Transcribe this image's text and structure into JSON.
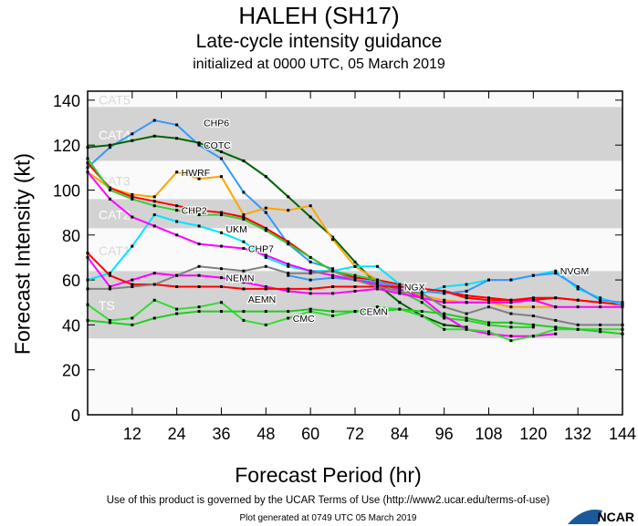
{
  "header": {
    "title": "HALEH (SH17)",
    "subtitle": "Late-cycle intensity guidance",
    "initialized": "initialized at 0000 UTC, 05 March 2019"
  },
  "footer": {
    "terms": "Use of this product is governed by the UCAR Terms of Use (http://www2.ucar.edu/terms-of-use)",
    "generated": "Plot generated at 0749 UTC   05 March 2019",
    "logo": "NCAR"
  },
  "chart_data": {
    "type": "line",
    "xlabel": "Forecast Period (hr)",
    "ylabel": "Forecast Intensity (kt)",
    "xlim": [
      0,
      144
    ],
    "ylim": [
      0,
      144
    ],
    "xticks": [
      12,
      24,
      36,
      48,
      60,
      72,
      84,
      96,
      108,
      120,
      132,
      144
    ],
    "yticks": [
      0,
      20,
      40,
      60,
      80,
      100,
      120,
      140
    ],
    "bands": [
      {
        "label": "TS",
        "from": 34,
        "to": 63,
        "color": "#d3d3d3"
      },
      {
        "label": "CAT1",
        "from": 64,
        "to": 82,
        "color": "#fafafa"
      },
      {
        "label": "CAT2",
        "from": 83,
        "to": 95,
        "color": "#d3d3d3"
      },
      {
        "label": "CAT3",
        "from": 96,
        "to": 112,
        "color": "#fafafa"
      },
      {
        "label": "CAT4",
        "from": 113,
        "to": 136,
        "color": "#d3d3d3"
      },
      {
        "label": "CAT5",
        "from": 137,
        "to": 144,
        "color": "#fafafa"
      }
    ],
    "x": [
      0,
      6,
      12,
      18,
      24,
      30,
      36,
      42,
      48,
      54,
      60,
      66,
      72,
      78,
      84,
      90,
      96,
      102,
      108,
      114,
      120,
      126,
      132,
      138,
      144
    ],
    "series": [
      {
        "name": "COTC",
        "color": "#3399ff",
        "label_at": 30,
        "values": [
          110,
          119,
          125,
          131,
          129,
          120,
          114,
          99,
          90,
          76,
          68,
          65,
          null,
          null,
          null,
          null,
          null,
          null,
          null,
          null,
          null,
          null,
          null,
          null,
          null
        ]
      },
      {
        "name": "CHP6",
        "color": "#006400",
        "label_at": 30,
        "values": [
          119,
          120,
          122,
          124,
          123,
          121,
          117,
          113,
          106,
          97,
          88,
          79,
          68,
          58,
          50,
          44,
          40,
          39,
          null,
          null,
          null,
          null,
          null,
          null,
          null
        ]
      },
      {
        "name": "HWRF",
        "color": "#ffa500",
        "label_at": 24,
        "values": [
          108,
          101,
          98,
          97,
          108,
          105,
          106,
          89,
          92,
          91,
          93,
          78,
          66,
          60,
          55,
          53,
          51,
          50,
          50,
          48,
          48,
          48,
          null,
          null,
          null
        ]
      },
      {
        "name": "",
        "color": "#ff0000",
        "label_at": null,
        "values": [
          112,
          101,
          97,
          95,
          93,
          91,
          90,
          88,
          83,
          77,
          70,
          64,
          61,
          60,
          58,
          56,
          55,
          53,
          52,
          51,
          51,
          52,
          51,
          50,
          49
        ]
      },
      {
        "name": "CHP2",
        "color": "#33cc33",
        "label_at": 24,
        "values": [
          114,
          100,
          96,
          93,
          91,
          89,
          89,
          87,
          82,
          76,
          70,
          64,
          62,
          60,
          55,
          50,
          43,
          42,
          40,
          39,
          39,
          null,
          null,
          null,
          null
        ]
      },
      {
        "name": "NVGM",
        "color": "#00e5ff",
        "label_at": 126,
        "values": [
          60,
          63,
          75,
          89,
          86,
          84,
          81,
          77,
          70,
          66,
          64,
          64,
          66,
          66,
          58,
          54,
          57,
          58,
          60,
          60,
          62,
          64,
          56,
          52,
          49
        ]
      },
      {
        "name": "NGX",
        "color": "#3399ff",
        "label_at": 84,
        "values": [
          null,
          null,
          null,
          null,
          null,
          null,
          null,
          null,
          null,
          62,
          60,
          61,
          60,
          59,
          57,
          55,
          54,
          55,
          60,
          60,
          62,
          63,
          57,
          51,
          50
        ]
      },
      {
        "name": "CHP7",
        "color": "#ff00ff",
        "label_at": 42,
        "values": [
          108,
          96,
          88,
          84,
          80,
          76,
          75,
          74,
          71,
          67,
          64,
          62,
          60,
          58,
          56,
          52,
          44,
          38,
          36,
          35,
          35,
          36,
          null,
          null,
          null
        ]
      },
      {
        "name": "NEMN",
        "color": "#ff00ff",
        "label_at": 36,
        "values": [
          70,
          57,
          60,
          63,
          62,
          62,
          61,
          59,
          57,
          55,
          54,
          54,
          55,
          56,
          54,
          52,
          50,
          50,
          50,
          50,
          51,
          48,
          48,
          48,
          48
        ]
      },
      {
        "name": "AEMN",
        "color": "#ff0000",
        "label_at": 42,
        "values": [
          72,
          62,
          58,
          58,
          57,
          57,
          57,
          56,
          56,
          56,
          56,
          57,
          57,
          57,
          57,
          56,
          55,
          52,
          51,
          51,
          52,
          52,
          51,
          50,
          null
        ]
      },
      {
        "name": "UKM",
        "color": "#808080",
        "label_at": 36,
        "values": [
          56,
          56,
          57,
          58,
          62,
          66,
          65,
          64,
          66,
          63,
          63,
          64,
          60,
          57,
          55,
          54,
          48,
          45,
          48,
          45,
          44,
          42,
          40,
          40,
          40
        ]
      },
      {
        "name": "CMC",
        "color": "#33dd33",
        "label_at": 54,
        "values": [
          49,
          42,
          43,
          51,
          47,
          48,
          50,
          42,
          40,
          43,
          46,
          44,
          46,
          48,
          47,
          44,
          38,
          38,
          37,
          33,
          35,
          38,
          38,
          38,
          38
        ]
      },
      {
        "name": "CEMN",
        "color": "#22cc22",
        "label_at": 72,
        "values": [
          42,
          41,
          40,
          43,
          45,
          46,
          46,
          46,
          46,
          46,
          47,
          46,
          46,
          46,
          47,
          46,
          45,
          43,
          41,
          41,
          40,
          39,
          38,
          37,
          36
        ]
      }
    ]
  }
}
